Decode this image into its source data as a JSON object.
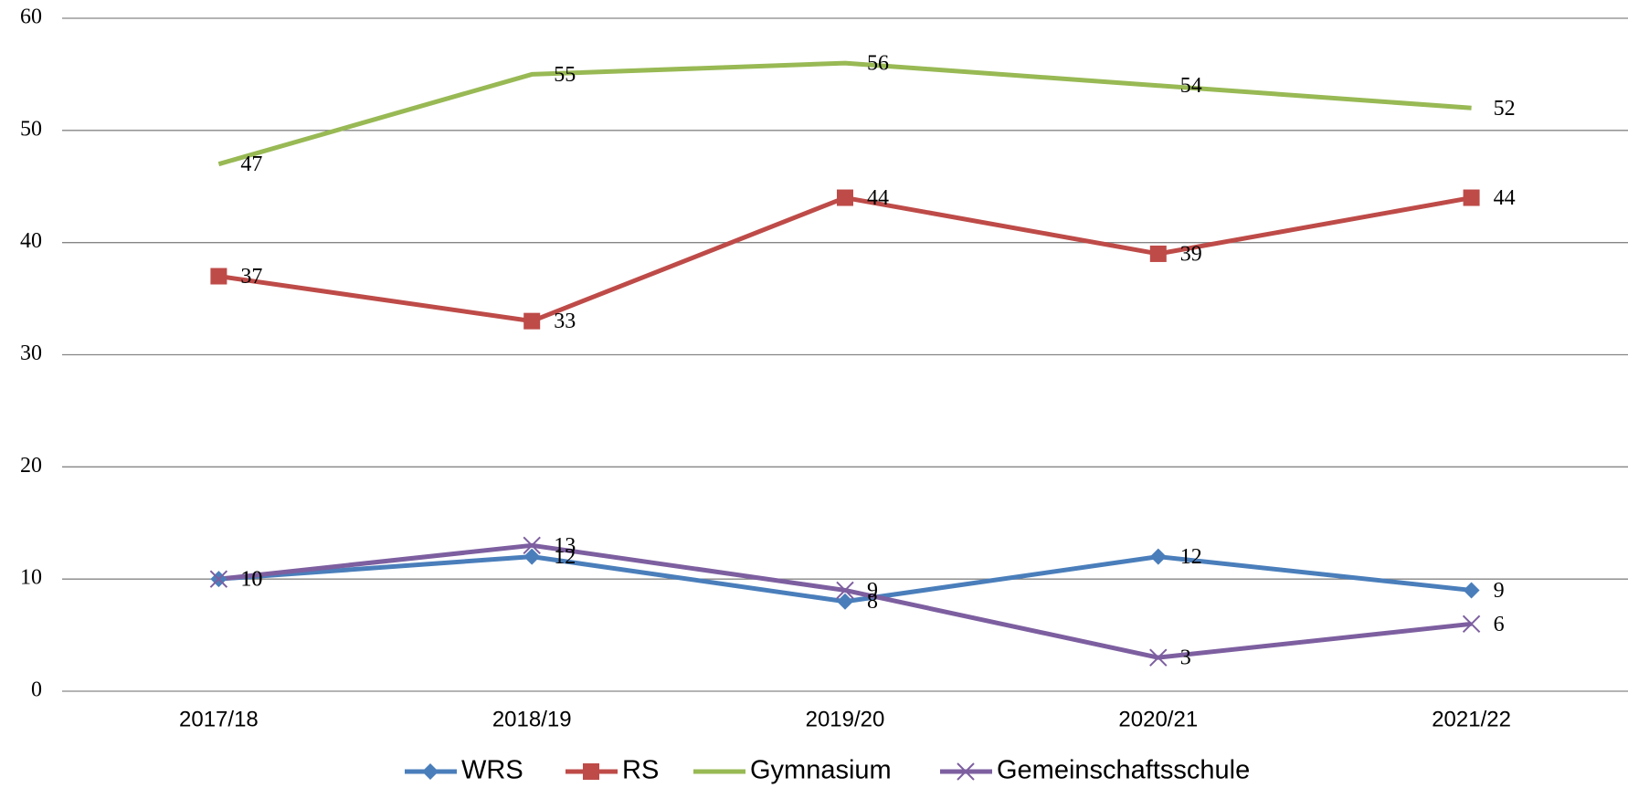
{
  "chart_data": {
    "type": "line",
    "categories": [
      "2017/18",
      "2018/19",
      "2019/20",
      "2020/21",
      "2021/22"
    ],
    "series": [
      {
        "name": "WRS",
        "color": "#4a7ebb",
        "marker": "diamond",
        "values": [
          10,
          12,
          8,
          12,
          9
        ]
      },
      {
        "name": "RS",
        "color": "#be4b48",
        "marker": "square",
        "values": [
          37,
          33,
          44,
          39,
          44
        ]
      },
      {
        "name": "Gymnasium",
        "color": "#98b954",
        "marker": "none",
        "values": [
          47,
          55,
          56,
          54,
          52
        ]
      },
      {
        "name": "Gemeinschaftsschule",
        "color": "#7d5fa0",
        "marker": "x",
        "values": [
          10,
          13,
          9,
          3,
          6
        ]
      }
    ],
    "ylim": [
      0,
      60
    ],
    "yticks": [
      0,
      10,
      20,
      30,
      40,
      50,
      60
    ],
    "grid": true,
    "legend": "bottom"
  }
}
